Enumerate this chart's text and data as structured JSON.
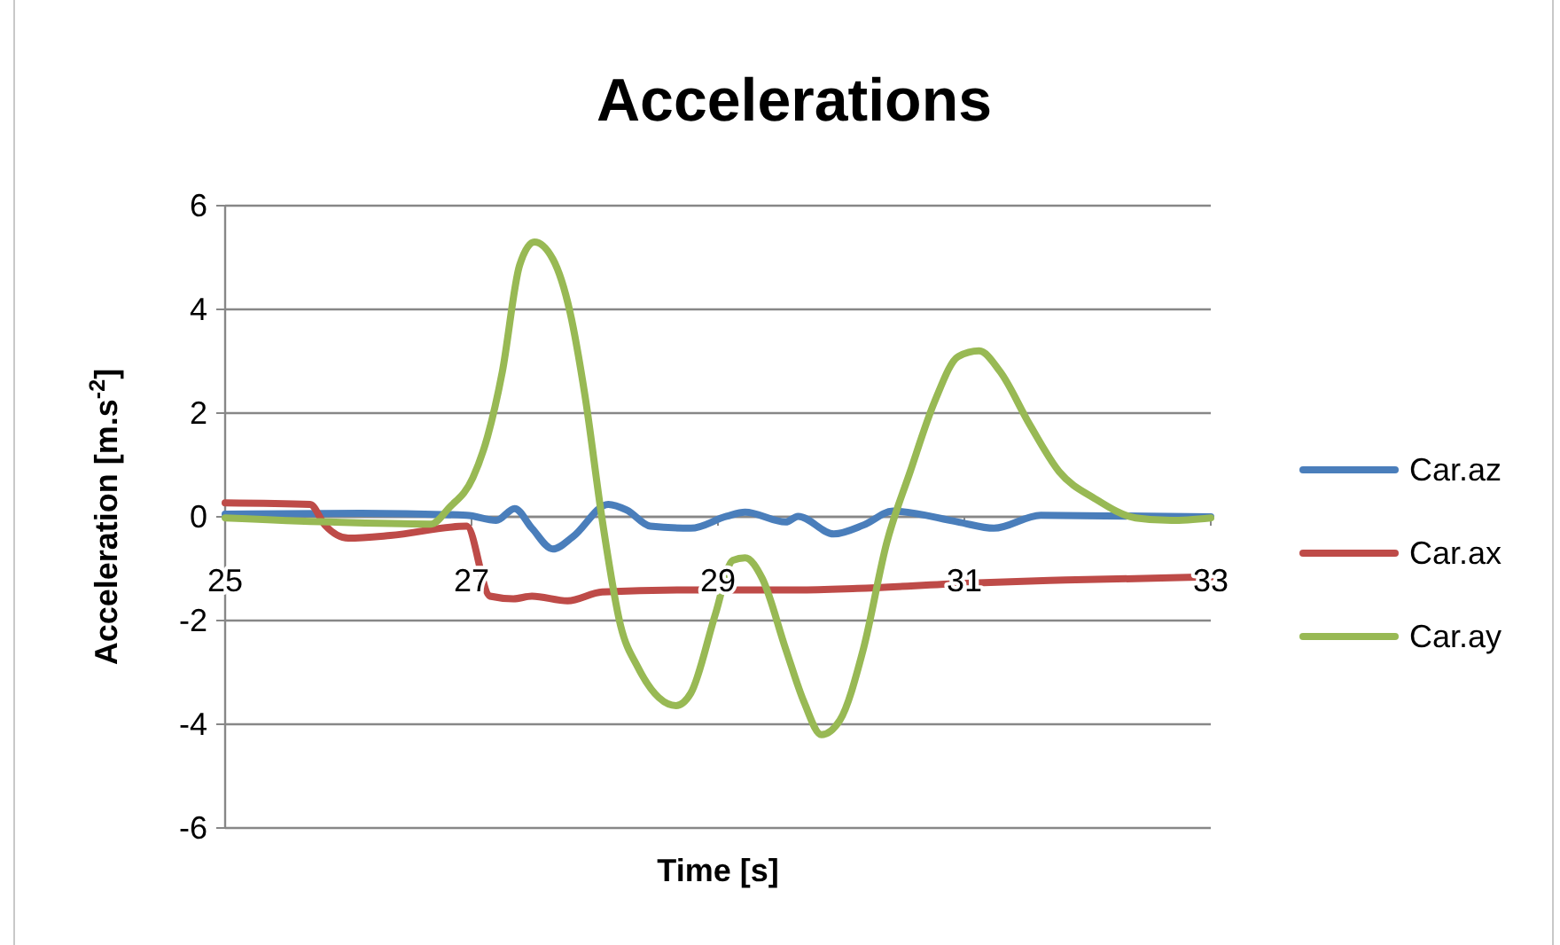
{
  "chart_data": {
    "type": "line",
    "title": "Accelerations",
    "xlabel": "Time [s]",
    "ylabel": "Acceleration [m.s$^{-2}$]",
    "xlim": [
      25,
      33
    ],
    "xticks": [
      25,
      27,
      29,
      31,
      33
    ],
    "ylim": [
      -6,
      6
    ],
    "yticks": [
      -6,
      -4,
      -2,
      0,
      2,
      4,
      6
    ],
    "grid": "y",
    "legend": "right",
    "marker": "none",
    "line_style": "solid",
    "series": [
      {
        "name": "Car.az",
        "color": "#4a7ebb",
        "x": [
          25,
          26.1,
          26.96,
          27.2,
          27.35,
          27.49,
          27.66,
          27.82,
          28.11,
          28.26,
          28.45,
          28.78,
          29.07,
          29.22,
          29.55,
          29.65,
          29.94,
          30.18,
          30.42,
          30.95,
          31.24,
          31.62,
          33
        ],
        "values": [
          0.05,
          0.07,
          0.03,
          -0.07,
          0.16,
          -0.22,
          -0.62,
          -0.39,
          0.24,
          0.13,
          -0.18,
          -0.22,
          0.01,
          0.09,
          -0.1,
          0.01,
          -0.33,
          -0.16,
          0.11,
          -0.1,
          -0.22,
          0.03,
          0
        ]
      },
      {
        "name": "Car.ax",
        "color": "#be4b48",
        "x": [
          25,
          25.69,
          25.81,
          26.0,
          26.34,
          26.96,
          27.15,
          27.34,
          27.49,
          27.78,
          28.06,
          28.74,
          29.65,
          30.13,
          31.0,
          31.82,
          33
        ],
        "values": [
          0.27,
          0.24,
          -0.16,
          -0.41,
          -0.36,
          -0.18,
          -1.53,
          -1.58,
          -1.53,
          -1.62,
          -1.45,
          -1.41,
          -1.41,
          -1.38,
          -1.28,
          -1.22,
          -1.16
        ]
      },
      {
        "name": "Car.ay",
        "color": "#98b954",
        "x": [
          25,
          25.85,
          26.67,
          26.82,
          27.01,
          27.13,
          27.25,
          27.39,
          27.51,
          27.66,
          27.8,
          27.92,
          28.06,
          28.21,
          28.35,
          28.66,
          28.78,
          28.98,
          29.12,
          29.22,
          29.36,
          29.55,
          29.7,
          29.84,
          29.99,
          30.18,
          30.37,
          30.56,
          30.76,
          30.95,
          31.12,
          31.29,
          31.53,
          31.77,
          32.06,
          32.39,
          32.68,
          33
        ],
        "values": [
          -0.02,
          -0.1,
          -0.14,
          0.18,
          0.75,
          1.55,
          2.8,
          4.85,
          5.3,
          4.97,
          3.94,
          2.35,
          -0.05,
          -2.1,
          -2.9,
          -3.64,
          -3.4,
          -1.87,
          -0.84,
          -0.79,
          -1.19,
          -2.55,
          -3.58,
          -4.2,
          -3.92,
          -2.55,
          -0.5,
          0.87,
          2.23,
          3.09,
          3.2,
          2.8,
          1.78,
          0.87,
          0.35,
          -0.02,
          -0.07,
          -0.02
        ]
      }
    ]
  }
}
